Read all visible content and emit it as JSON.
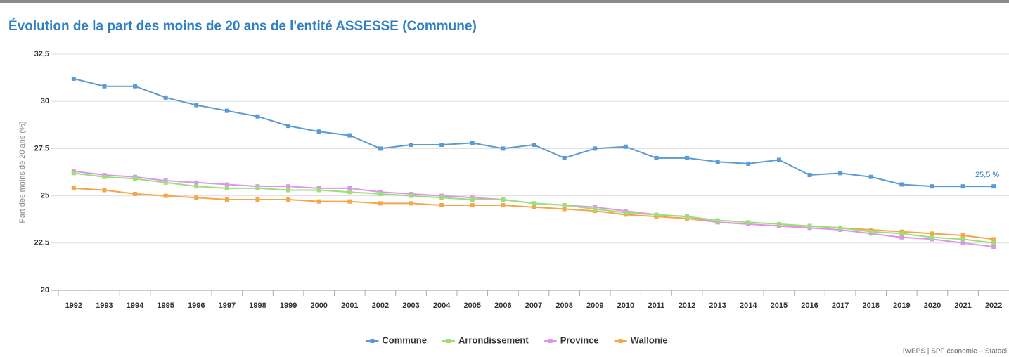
{
  "chart_data": {
    "type": "line",
    "title": "Évolution de la part des moins de 20 ans de l'entité ASSESSE (Commune)",
    "ylabel": "Part des moins de 20 ans (%)",
    "source": "IWEPS | SPF économie – Statbel",
    "categories": [
      "1992",
      "1993",
      "1994",
      "1995",
      "1996",
      "1997",
      "1998",
      "1999",
      "2000",
      "2001",
      "2002",
      "2003",
      "2004",
      "2005",
      "2006",
      "2007",
      "2008",
      "2009",
      "2010",
      "2011",
      "2012",
      "2013",
      "2014",
      "2015",
      "2016",
      "2017",
      "2018",
      "2019",
      "2020",
      "2021",
      "2022"
    ],
    "series": [
      {
        "name": "Commune",
        "color": "#5b9bd5",
        "values": [
          31.2,
          30.8,
          30.8,
          30.2,
          29.8,
          29.5,
          29.2,
          28.7,
          28.4,
          28.2,
          27.5,
          27.7,
          27.7,
          27.8,
          27.5,
          27.7,
          27.0,
          27.5,
          27.6,
          27.0,
          27.0,
          26.8,
          26.7,
          26.9,
          26.1,
          26.2,
          26.0,
          25.6,
          25.5,
          25.5,
          25.5
        ],
        "value_labels": [
          null,
          null,
          null,
          null,
          null,
          null,
          null,
          null,
          null,
          null,
          null,
          null,
          null,
          null,
          null,
          null,
          null,
          null,
          null,
          null,
          null,
          null,
          null,
          null,
          null,
          null,
          null,
          null,
          null,
          null,
          "25,5 %"
        ]
      },
      {
        "name": "Arrondissement",
        "color": "#9bde7a",
        "values": [
          26.2,
          26.0,
          25.9,
          25.7,
          25.5,
          25.4,
          25.4,
          25.3,
          25.3,
          25.2,
          25.1,
          25.0,
          24.9,
          24.8,
          24.8,
          24.6,
          24.5,
          24.3,
          24.1,
          24.0,
          23.9,
          23.7,
          23.6,
          23.5,
          23.4,
          23.3,
          23.1,
          23.0,
          22.8,
          22.7,
          22.5
        ]
      },
      {
        "name": "Province",
        "color": "#dc95ea",
        "values": [
          26.3,
          26.1,
          26.0,
          25.8,
          25.7,
          25.6,
          25.5,
          25.5,
          25.4,
          25.4,
          25.2,
          25.1,
          25.0,
          24.9,
          24.8,
          24.6,
          24.5,
          24.4,
          24.2,
          24.0,
          23.9,
          23.6,
          23.5,
          23.4,
          23.3,
          23.2,
          23.0,
          22.8,
          22.7,
          22.5,
          22.3
        ]
      },
      {
        "name": "Wallonie",
        "color": "#f5a54a",
        "values": [
          25.4,
          25.3,
          25.1,
          25.0,
          24.9,
          24.8,
          24.8,
          24.8,
          24.7,
          24.7,
          24.6,
          24.6,
          24.5,
          24.5,
          24.5,
          24.4,
          24.3,
          24.2,
          24.0,
          23.9,
          23.8,
          23.6,
          23.5,
          23.4,
          23.4,
          23.3,
          23.2,
          23.1,
          23.0,
          22.9,
          22.7
        ]
      }
    ],
    "ylim": [
      20,
      32.5
    ],
    "yticks": [
      20,
      {
        "value": 22.5,
        "label": "22,5"
      },
      25,
      {
        "value": 27.5,
        "label": "27,5"
      },
      30,
      {
        "value": 32.5,
        "label": "32,5"
      }
    ],
    "grid": true,
    "legend": "bottom"
  }
}
